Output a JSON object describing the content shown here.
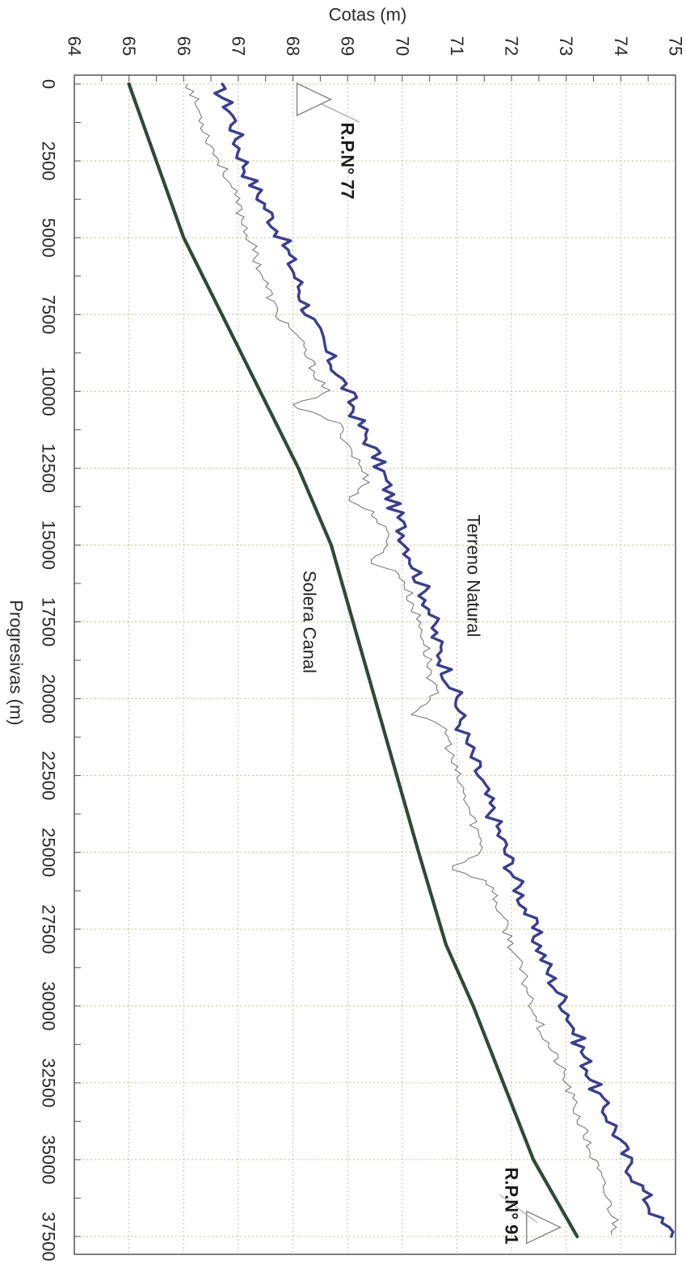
{
  "chart_data": {
    "type": "line",
    "orientation": "rotated-90-clockwise",
    "xlabel": "Progresivas (m)",
    "ylabel": "Cotas (m)",
    "xlim": [
      0,
      38500
    ],
    "ylim": [
      64,
      75
    ],
    "x_ticks": [
      0,
      2500,
      5000,
      7500,
      10000,
      12500,
      15000,
      17500,
      20000,
      22500,
      25000,
      27500,
      30000,
      32500,
      35000,
      37500
    ],
    "y_ticks": [
      64,
      65,
      66,
      67,
      68,
      69,
      70,
      71,
      72,
      73,
      74,
      75
    ],
    "grid": true,
    "colors": {
      "canal": "#2f4a36",
      "upper": "#3a3f8c",
      "terrain": "#6e6e6e",
      "grid": "#b8c49a",
      "frame": "#555555"
    },
    "series": [
      {
        "name": "Solera Canal",
        "style": "thick-dark-green",
        "x": [
          0,
          5000,
          10000,
          12500,
          15000,
          20000,
          25000,
          28000,
          30000,
          35000,
          37500
        ],
        "y": [
          65.0,
          66.0,
          67.4,
          68.1,
          68.7,
          69.5,
          70.3,
          70.8,
          71.3,
          72.4,
          73.2
        ]
      },
      {
        "name": "",
        "style": "thick-blue",
        "x": [
          0,
          1000,
          2000,
          3000,
          4000,
          5000,
          6000,
          7000,
          8000,
          9000,
          10000,
          11000,
          12000,
          13000,
          14000,
          15000,
          16000,
          17000,
          18000,
          19000,
          20000,
          21000,
          22000,
          23000,
          24000,
          25000,
          26000,
          27000,
          28000,
          29000,
          30000,
          31000,
          32000,
          33000,
          34000,
          35000,
          36000,
          37000,
          37500
        ],
        "y": [
          66.6,
          66.9,
          67.0,
          67.2,
          67.5,
          67.8,
          68.0,
          68.2,
          68.4,
          68.7,
          69.0,
          69.2,
          69.5,
          69.7,
          69.9,
          70.1,
          70.3,
          70.5,
          70.6,
          70.8,
          71.0,
          71.1,
          71.3,
          71.5,
          71.7,
          71.9,
          72.1,
          72.3,
          72.5,
          72.7,
          73.0,
          73.2,
          73.4,
          73.6,
          73.9,
          74.1,
          74.4,
          74.7,
          75.0
        ]
      },
      {
        "name": "Terreno Natural",
        "style": "thin-gray",
        "x": [
          0,
          1000,
          2000,
          3000,
          4000,
          5000,
          6000,
          7000,
          7500,
          8000,
          9000,
          10000,
          10500,
          11000,
          12000,
          13000,
          13500,
          14000,
          15000,
          15500,
          16000,
          17000,
          18000,
          19000,
          20000,
          20500,
          21000,
          22000,
          23000,
          24000,
          25000,
          25500,
          26000,
          27000,
          28000,
          29000,
          30000,
          31000,
          32000,
          33000,
          34000,
          35000,
          36000,
          37000,
          37500
        ],
        "y": [
          66.1,
          66.3,
          66.5,
          66.8,
          67.0,
          67.2,
          67.4,
          67.6,
          67.7,
          68.0,
          68.3,
          68.6,
          68.0,
          68.8,
          69.1,
          69.4,
          69.0,
          69.5,
          69.8,
          69.4,
          70.0,
          70.2,
          70.4,
          70.5,
          70.6,
          70.2,
          70.8,
          70.9,
          71.1,
          71.3,
          71.5,
          70.9,
          71.6,
          71.8,
          72.0,
          72.2,
          72.4,
          72.6,
          72.9,
          73.1,
          73.3,
          73.5,
          73.7,
          73.9,
          73.9
        ]
      }
    ],
    "annotations": [
      {
        "text": "R.P.N° 77",
        "x": 2500,
        "y": 69.0,
        "weight": "bold"
      },
      {
        "text": "Terreno Natural",
        "x": 16000,
        "y": 71.3,
        "weight": "normal"
      },
      {
        "text": "Solera Canal",
        "x": 17500,
        "y": 68.3,
        "weight": "normal"
      },
      {
        "text": "R.P.N° 91",
        "x": 36500,
        "y": 72.0,
        "weight": "bold"
      }
    ],
    "markers": [
      {
        "type": "triangle",
        "x": 500,
        "y": 68.4
      },
      {
        "type": "triangle",
        "x": 37200,
        "y": 72.6
      }
    ]
  }
}
